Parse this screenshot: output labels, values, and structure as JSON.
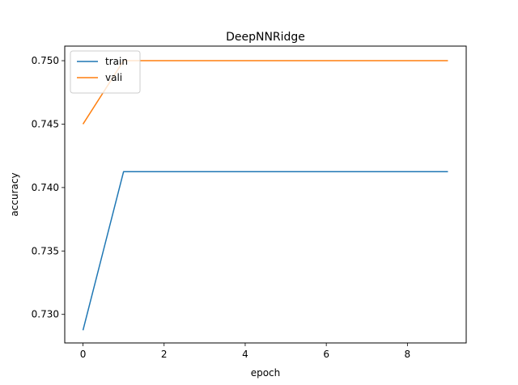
{
  "chart_data": {
    "type": "line",
    "title": "DeepNNRidge",
    "xlabel": "epoch",
    "ylabel": "accuracy",
    "xlim": [
      -0.45,
      9.45
    ],
    "ylim": [
      0.72775,
      0.75115
    ],
    "xticks": [
      0,
      2,
      4,
      6,
      8
    ],
    "yticks": [
      0.73,
      0.735,
      0.74,
      0.745,
      0.75
    ],
    "ytick_labels": [
      "0.730",
      "0.735",
      "0.740",
      "0.745",
      "0.750"
    ],
    "grid": false,
    "legend_position": "upper-left",
    "x": [
      0,
      1,
      2,
      3,
      4,
      5,
      6,
      7,
      8,
      9
    ],
    "series": [
      {
        "name": "train",
        "color": "#1f77b4",
        "values": [
          0.72875,
          0.74125,
          0.74125,
          0.74125,
          0.74125,
          0.74125,
          0.74125,
          0.74125,
          0.74125,
          0.74125
        ]
      },
      {
        "name": "vali",
        "color": "#ff7f0e",
        "values": [
          0.745,
          0.75,
          0.75,
          0.75,
          0.75,
          0.75,
          0.75,
          0.75,
          0.75,
          0.75
        ]
      }
    ]
  }
}
